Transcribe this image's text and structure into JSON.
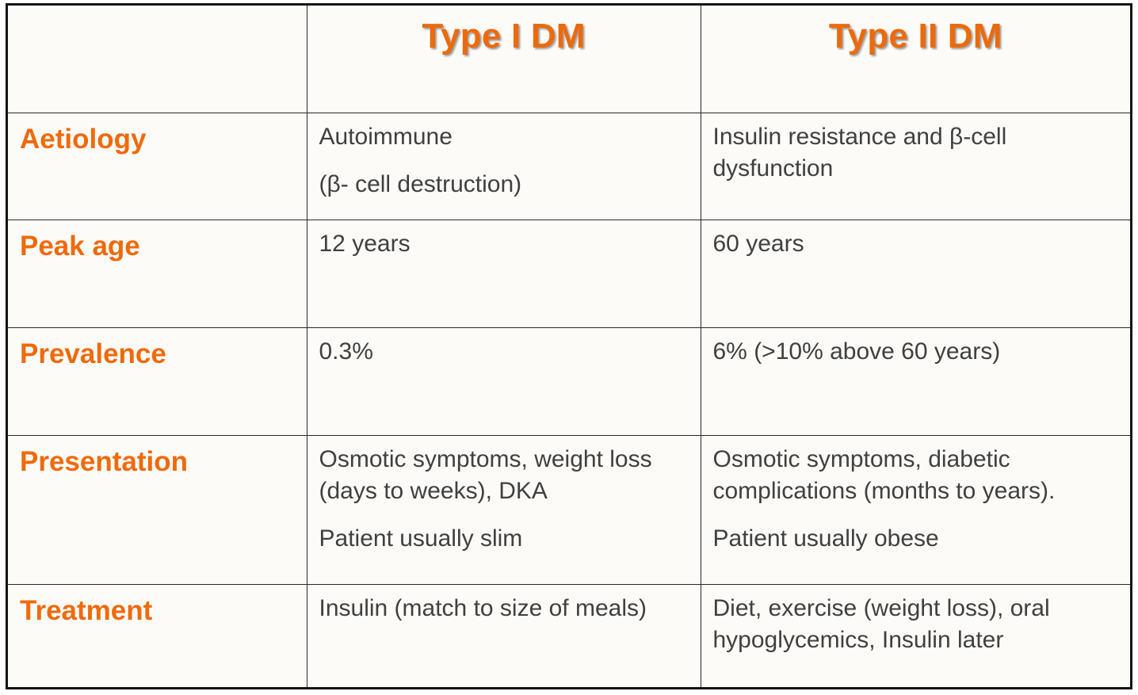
{
  "table": {
    "headers": [
      "",
      "Type I DM",
      "Type II DM"
    ],
    "rows": [
      {
        "label": "Aetiology",
        "type1": [
          "Autoimmune",
          "(β- cell destruction)"
        ],
        "type2": [
          "Insulin resistance and β-cell dysfunction"
        ]
      },
      {
        "label": "Peak age",
        "type1": [
          "12 years"
        ],
        "type2": [
          "60 years"
        ]
      },
      {
        "label": "Prevalence",
        "type1": [
          "0.3%"
        ],
        "type2": [
          "6% (>10% above 60 years)"
        ]
      },
      {
        "label": "Presentation",
        "type1": [
          "Osmotic symptoms, weight loss (days to weeks), DKA",
          "Patient usually slim"
        ],
        "type2": [
          "Osmotic symptoms, diabetic complications (months to years).",
          "Patient usually obese"
        ]
      },
      {
        "label": "Treatment",
        "type1": [
          "Insulin (match to size of meals)"
        ],
        "type2": [
          "Diet, exercise (weight loss), oral hypoglycemics, Insulin later"
        ]
      }
    ]
  },
  "colors": {
    "accent": "#f06a0a",
    "body_text": "#404040",
    "border": "#141414"
  }
}
